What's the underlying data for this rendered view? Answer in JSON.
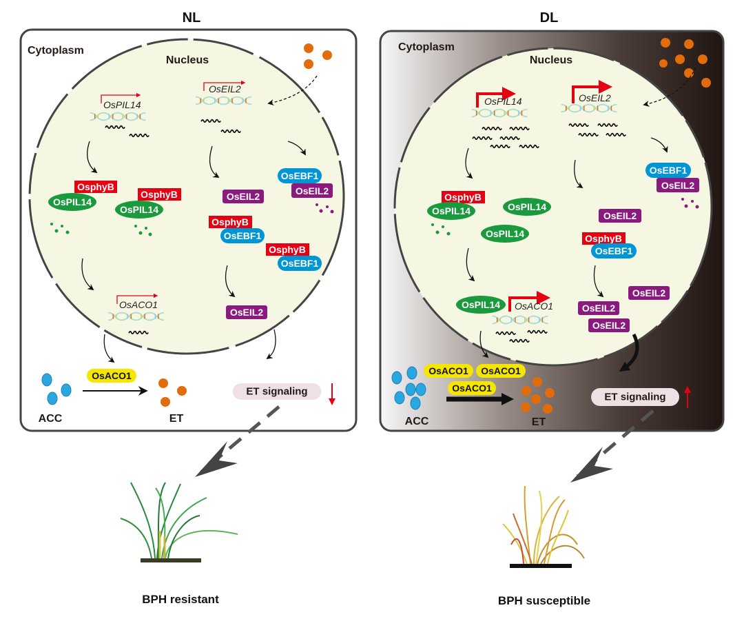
{
  "panels": {
    "left": {
      "title": "NL",
      "cytoplasm": "Cytoplasm",
      "nucleus": "Nucleus",
      "et_signaling": "ET signaling",
      "et_trend": "down",
      "outcome": "BPH resistant"
    },
    "right": {
      "title": "DL",
      "cytoplasm": "Cytoplasm",
      "nucleus": "Nucleus",
      "et_signaling": "ET signaling",
      "et_trend": "up",
      "outcome": "BPH susceptible"
    }
  },
  "genes": {
    "pil14": "OsPIL14",
    "eil2": "OsEIL2",
    "aco1": "OsACO1"
  },
  "proteins": {
    "phyB": "OsphyB",
    "pil14": "OsPIL14",
    "eil2": "OsEIL2",
    "ebf1": "OsEBF1",
    "aco1": "OsACO1"
  },
  "molecules": {
    "acc": "ACC",
    "et": "ET"
  },
  "colors": {
    "phyB": "#e60012",
    "pil14": "#1a9a3c",
    "eil2": "#8b1a7f",
    "ebf1": "#0096d6",
    "aco1": "#f5e600",
    "et": "#e36c0a",
    "acc": "#2aa6e0",
    "nucleus": "#f6f7e2",
    "promoter_arrow": "#e60012"
  }
}
